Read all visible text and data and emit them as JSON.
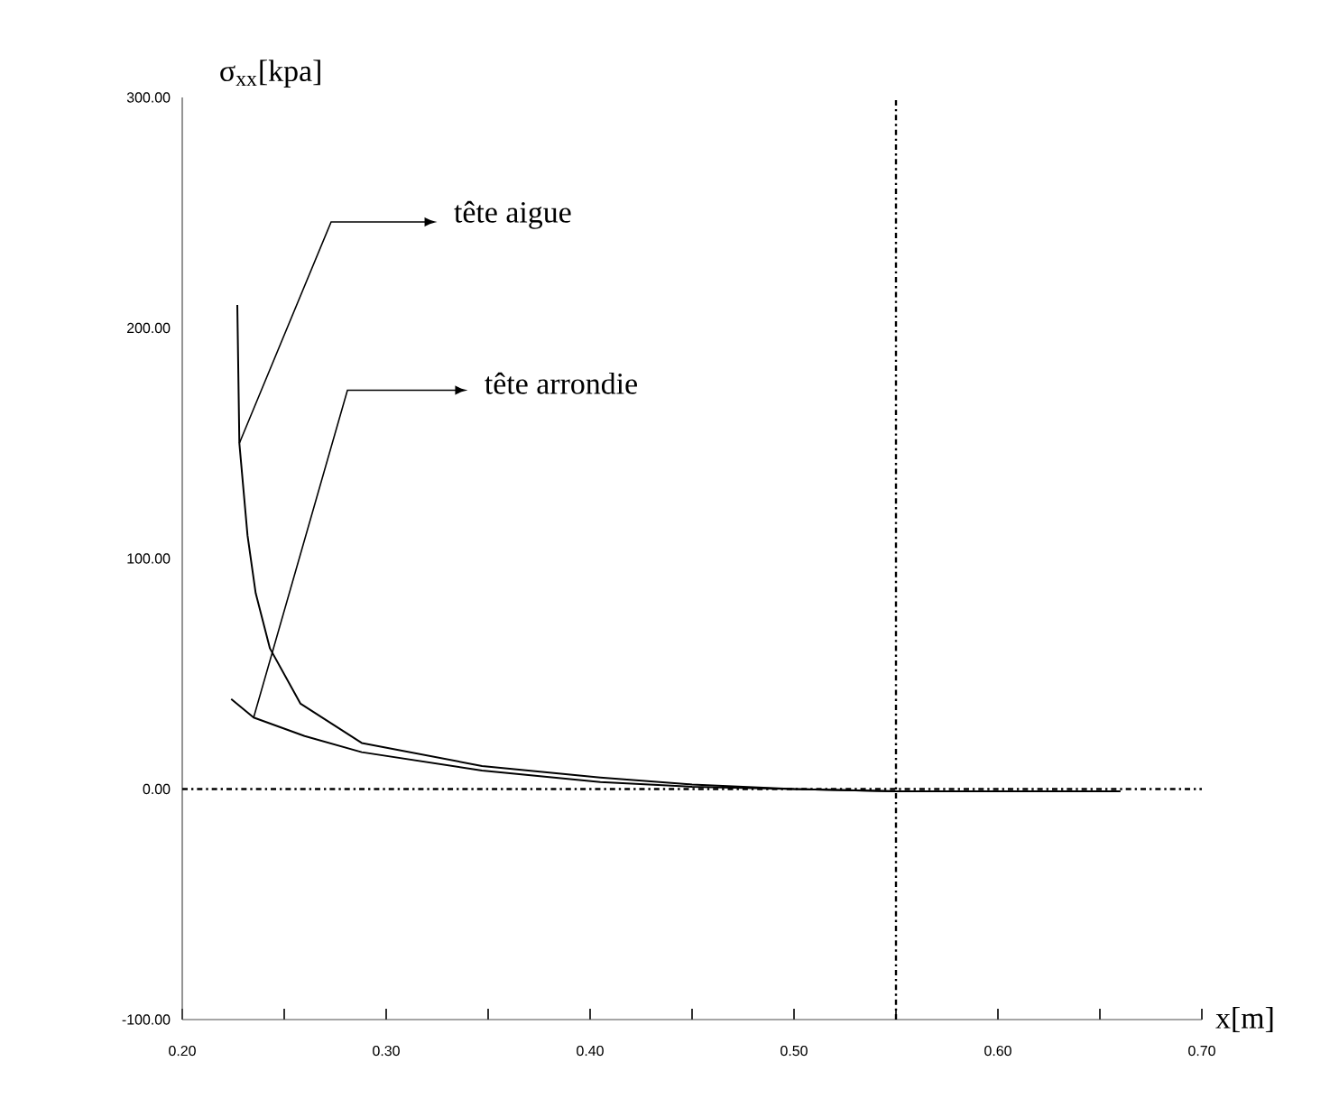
{
  "chart_data": {
    "type": "line",
    "xlabel": "x[m]",
    "ylabel": "σ$_{xx}$[kpa]",
    "xlim": [
      0.2,
      0.7
    ],
    "ylim": [
      -100,
      300
    ],
    "xticks": [
      {
        "value": 0.2,
        "label": "0.20"
      },
      {
        "value": 0.25,
        "label": null
      },
      {
        "value": 0.3,
        "label": "0.30"
      },
      {
        "value": 0.35,
        "label": null
      },
      {
        "value": 0.4,
        "label": "0.40"
      },
      {
        "value": 0.45,
        "label": null
      },
      {
        "value": 0.5,
        "label": "0.50"
      },
      {
        "value": 0.55,
        "label": null
      },
      {
        "value": 0.6,
        "label": "0.60"
      },
      {
        "value": 0.65,
        "label": null
      },
      {
        "value": 0.7,
        "label": "0.70"
      }
    ],
    "yticks": [
      {
        "value": -100,
        "label": "-100.00"
      },
      {
        "value": 0,
        "label": "0.00"
      },
      {
        "value": 100,
        "label": "100.00"
      },
      {
        "value": 200,
        "label": "200.00"
      },
      {
        "value": 300,
        "label": "300.00"
      }
    ],
    "marker": "none",
    "line_style": "solid",
    "series": [
      {
        "color": "#000000",
        "x": [
          0.227,
          0.228,
          0.232,
          0.236,
          0.243,
          0.258,
          0.288,
          0.347,
          0.405,
          0.45,
          0.5,
          0.55,
          0.6,
          0.66
        ],
        "values": [
          210,
          150,
          110,
          85,
          61,
          37,
          20,
          10,
          5,
          2,
          0,
          -1,
          -1,
          -1
        ]
      },
      {
        "color": "#000000",
        "x": [
          0.224,
          0.235,
          0.26,
          0.288,
          0.347,
          0.405,
          0.45,
          0.5,
          0.55,
          0.66
        ],
        "values": [
          39,
          31,
          23,
          16,
          8,
          3,
          1,
          0,
          -1,
          -1
        ]
      }
    ],
    "ref_lines": [
      {
        "axis": "y",
        "value": 0,
        "line_style": "dashdot",
        "color": "#000000"
      },
      {
        "axis": "x",
        "value": 0.55,
        "line_style": "dashdot",
        "color": "#000000"
      }
    ],
    "annotations": [
      {
        "text": "tête aigue",
        "x": 0.228,
        "y": 150
      },
      {
        "text": "tête arrondie",
        "x": 0.235,
        "y": 31
      }
    ]
  }
}
